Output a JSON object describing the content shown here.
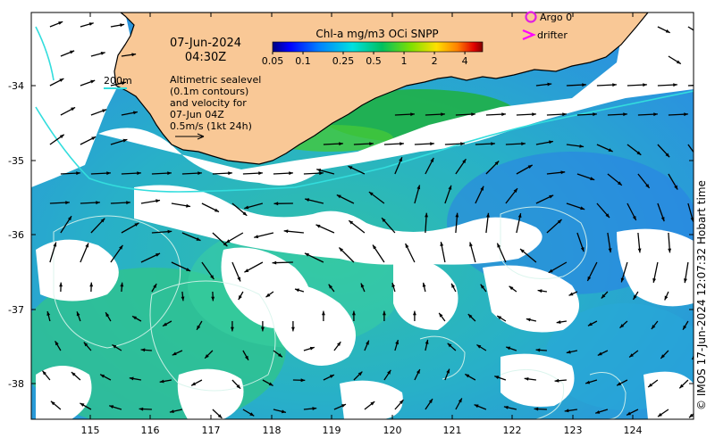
{
  "map": {
    "date": "07-Jun-2024",
    "time": "04:30Z",
    "scale_bar_label": "0.5m/s (1kt 24h)",
    "contour_label": "200m",
    "legend_notes": [
      "Altimetric sealevel",
      "(0.1m contours)",
      "and velocity for",
      "07-Jun 04Z"
    ],
    "x_ticks": [
      "115",
      "116",
      "117",
      "118",
      "119",
      "120",
      "121",
      "122",
      "123",
      "124"
    ],
    "y_ticks": [
      "-34",
      "-35",
      "-36",
      "-37",
      "-38"
    ],
    "colorbar": {
      "title": "Chl-a mg/m3 OCi SNPP",
      "ticks": [
        "0.05",
        "0.1",
        "0.25",
        "0.5",
        "1",
        "2",
        "4"
      ],
      "scale": "log"
    },
    "legend": {
      "argo": "Argo 0",
      "drifter": "drifter"
    },
    "credit": "© IMOS 17-Jun-2024 12:07:32 Hobart time",
    "colors": {
      "land": "#f9c896",
      "cloud": "#ffffff",
      "shelf_contour": "#33dddd",
      "argo": "#e020e0",
      "drifter": "#ff00ff",
      "arrows": "#000000"
    }
  }
}
